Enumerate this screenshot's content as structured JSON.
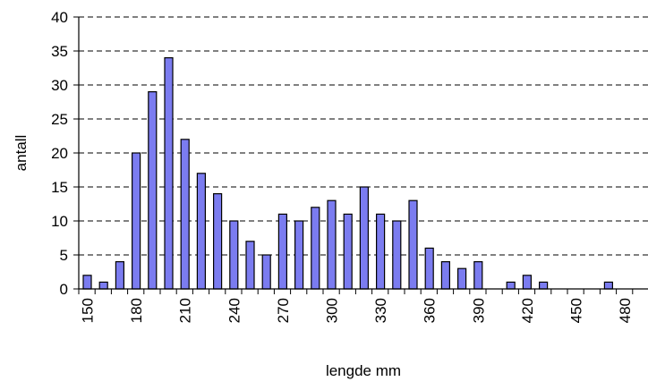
{
  "chart_data": {
    "type": "bar",
    "title": "",
    "xlabel": "lengde mm",
    "ylabel": "antall",
    "ylim": [
      0,
      40
    ],
    "yticks": [
      "0",
      "5",
      "10",
      "15",
      "20",
      "25",
      "30",
      "35",
      "40"
    ],
    "x_tick_labels": [
      "150",
      "180",
      "210",
      "240",
      "270",
      "300",
      "330",
      "360",
      "390",
      "420",
      "450",
      "480"
    ],
    "grid": "horizontal dashed",
    "legend": "none",
    "bar_color": "#7b7cf0",
    "categories": [
      150,
      160,
      170,
      180,
      190,
      200,
      210,
      220,
      230,
      240,
      250,
      260,
      270,
      280,
      290,
      300,
      310,
      320,
      330,
      340,
      350,
      360,
      370,
      380,
      390,
      400,
      410,
      420,
      430,
      440,
      450,
      460,
      470,
      480,
      490
    ],
    "values": [
      2,
      1,
      4,
      20,
      29,
      34,
      22,
      17,
      14,
      10,
      7,
      5,
      11,
      10,
      12,
      13,
      11,
      15,
      11,
      10,
      13,
      6,
      4,
      3,
      4,
      0,
      1,
      2,
      1,
      0,
      0,
      0,
      1,
      0,
      0
    ]
  }
}
